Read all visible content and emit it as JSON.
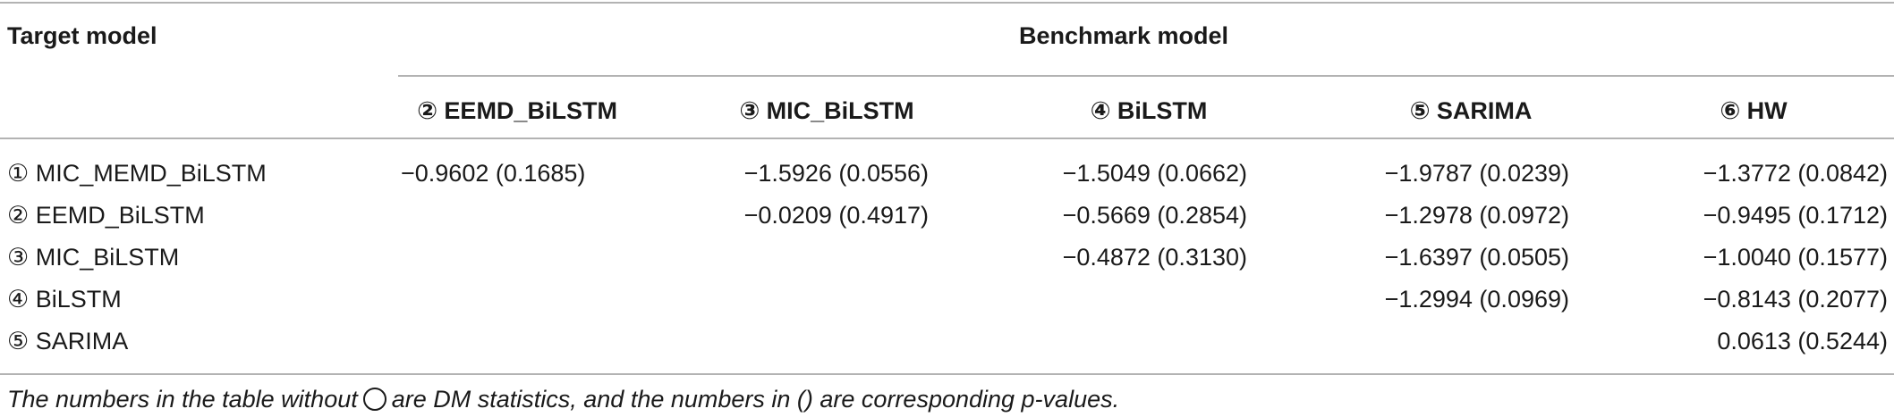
{
  "table": {
    "header": {
      "target_label": "Target model",
      "benchmark_label": "Benchmark model",
      "columns": [
        "② EEMD_BiLSTM",
        "③ MIC_BiLSTM",
        "④ BiLSTM",
        "⑤ SARIMA",
        "⑥ HW"
      ]
    },
    "rows": [
      {
        "label": "① MIC_MEMD_BiLSTM",
        "cells": [
          "−0.9602 (0.1685)",
          "−1.5926 (0.0556)",
          "−1.5049 (0.0662)",
          "−1.9787 (0.0239)",
          "−1.3772 (0.0842)"
        ]
      },
      {
        "label": "② EEMD_BiLSTM",
        "cells": [
          "",
          "−0.0209 (0.4917)",
          "−0.5669 (0.2854)",
          "−1.2978 (0.0972)",
          "−0.9495 (0.1712)"
        ]
      },
      {
        "label": "③ MIC_BiLSTM",
        "cells": [
          "",
          "",
          "−0.4872 (0.3130)",
          "−1.6397 (0.0505)",
          "−1.0040 (0.1577)"
        ]
      },
      {
        "label": "④ BiLSTM",
        "cells": [
          "",
          "",
          "",
          "−1.2994 (0.0969)",
          "−0.8143 (0.2077)"
        ]
      },
      {
        "label": "⑤ SARIMA",
        "cells": [
          "",
          "",
          "",
          "",
          "0.0613 (0.5244)"
        ]
      }
    ],
    "footnote": {
      "before": "The numbers in the table without",
      "after": "are DM statistics, and the numbers in () are corresponding p-values."
    }
  }
}
